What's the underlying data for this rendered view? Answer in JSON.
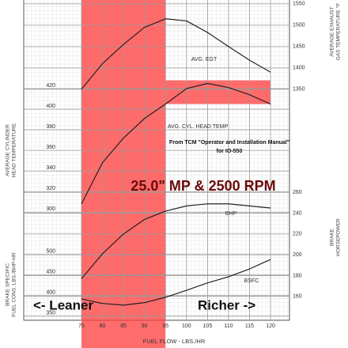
{
  "chart_data": {
    "type": "line",
    "annotations": [
      "From TCM \"Operator and Installation Manual\"",
      "for IO-550",
      "25.0\" MP & 2500 RPM",
      "<- Leaner",
      "Richer ->"
    ],
    "x_label": "FUEL FLOW - LBS./HR",
    "xlim": [
      59,
      126.2
    ],
    "xticks": [
      75,
      80,
      85,
      90,
      95,
      100,
      105,
      110,
      115,
      120
    ],
    "x": [
      75,
      80,
      85,
      90,
      95,
      100,
      105,
      110,
      115,
      120
    ],
    "grid": true,
    "shade_color": "#ff3b3b",
    "shaded_x": [
      75,
      95
    ],
    "shaded_box": {
      "x": [
        95,
        120
      ],
      "y": [
        405,
        428
      ]
    },
    "series": [
      {
        "name": "AVG. EGT",
        "color": "#222",
        "side": "right",
        "axis_title": [
          "AVERAGE EXHAUST",
          "GAS TEMPERATURE °F"
        ],
        "ylim": [
          809,
          1559
        ],
        "yticks": [
          1350,
          1400,
          1450,
          1500,
          1550
        ],
        "values": [
          1350,
          1410,
          1455,
          1495,
          1515,
          1510,
          1483,
          1450,
          1418,
          1390
        ]
      },
      {
        "name": "AVG. CYL. HEAD TEMP",
        "color": "#222",
        "side": "left",
        "axis_title": [
          "AVERAGE CYLINDER",
          "HEAD TEMPERATURE"
        ],
        "ylim": [
          195,
          506
        ],
        "yticks": [
          300,
          320,
          340,
          360,
          380,
          400,
          420
        ],
        "values": [
          308,
          348,
          372,
          391,
          405,
          420,
          425,
          421,
          414,
          405
        ]
      },
      {
        "name": "BHP",
        "color": "#222",
        "side": "right",
        "axis_title": [
          "BRAKE",
          "HORSEPOWER"
        ],
        "ylim": [
          137,
          445
        ],
        "yticks": [
          160,
          180,
          200,
          220,
          240,
          260
        ],
        "values": [
          177,
          201,
          220,
          234,
          242,
          247,
          249,
          249,
          247,
          245
        ]
      },
      {
        "name": "BSFC",
        "color": "#222",
        "side": "left",
        "axis_title": [
          "BRAKE SPECIFIC",
          "FUEL CONS. LBS./BHP-HR"
        ],
        "ylim": [
          340,
          1119
        ],
        "yticks": [
          350,
          400,
          450,
          500
        ],
        "values": [
          392,
          381,
          377,
          383,
          396,
          413,
          431,
          446,
          465,
          488
        ]
      }
    ]
  }
}
